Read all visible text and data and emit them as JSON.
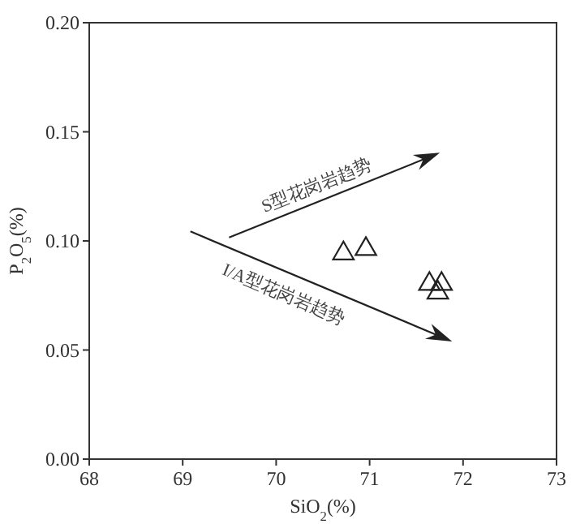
{
  "chart_data": {
    "type": "scatter",
    "xlabel": "SiO$_{2}$(%)",
    "ylabel": "P$_{2}$O$_{5}$(%)",
    "x": [
      70.72,
      70.96,
      71.64,
      71.77,
      71.73
    ],
    "series": [
      {
        "color": "#222222",
        "values": [
          0.095,
          0.097,
          0.081,
          0.081,
          0.077
        ]
      }
    ],
    "marker": "triangle",
    "grid": false,
    "xlim": [
      68,
      73
    ],
    "xticks": [
      68,
      69,
      70,
      71,
      72,
      73
    ],
    "ylim": [
      0,
      0.2
    ],
    "yticks": [
      {
        "value": 0,
        "label": "0.00"
      },
      {
        "value": 0.05,
        "label": "0.05"
      },
      {
        "value": 0.1,
        "label": "0.10"
      },
      {
        "value": 0.15,
        "label": "0.15"
      },
      {
        "value": 0.2,
        "label": "0.20"
      }
    ],
    "annotations": [
      "S型花岗岩趋势",
      "I/A型花岗岩趋势"
    ]
  }
}
